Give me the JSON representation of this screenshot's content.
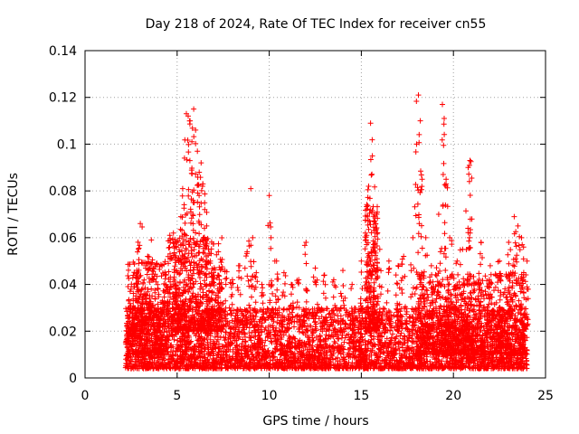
{
  "chart_data": {
    "type": "scatter",
    "title": "Day 218 of 2024, Rate Of TEC Index for receiver cn55",
    "xlabel": "GPS time / hours",
    "ylabel": "ROTI / TECUs",
    "xlim": [
      0,
      25
    ],
    "ylim": [
      0,
      0.14
    ],
    "xticks": [
      0,
      5,
      10,
      15,
      20,
      25
    ],
    "yticks": [
      0,
      0.02,
      0.04,
      0.06,
      0.08,
      0.1,
      0.12,
      0.14
    ],
    "xtick_labels": [
      "0",
      "5",
      "10",
      "15",
      "20",
      "25"
    ],
    "ytick_labels": [
      "0",
      "0.02",
      "0.04",
      "0.06",
      "0.08",
      "0.1",
      "0.12",
      "0.14"
    ],
    "grid": true,
    "marker": "+",
    "color": "#ff0000",
    "x_range_observed": [
      2.2,
      24.0
    ],
    "points": [
      [
        2.3,
        0.013
      ],
      [
        2.4,
        0.018
      ],
      [
        2.5,
        0.038
      ],
      [
        2.6,
        0.022
      ],
      [
        2.7,
        0.03
      ],
      [
        2.8,
        0.045
      ],
      [
        2.9,
        0.055
      ],
      [
        3.0,
        0.066
      ],
      [
        3.1,
        0.049
      ],
      [
        3.2,
        0.036
      ],
      [
        3.4,
        0.052
      ],
      [
        3.5,
        0.041
      ],
      [
        3.6,
        0.059
      ],
      [
        3.7,
        0.047
      ],
      [
        3.8,
        0.034
      ],
      [
        4.0,
        0.028
      ],
      [
        4.2,
        0.033
      ],
      [
        4.4,
        0.044
      ],
      [
        4.6,
        0.061
      ],
      [
        4.8,
        0.062
      ],
      [
        5.0,
        0.058
      ],
      [
        5.1,
        0.05
      ],
      [
        5.2,
        0.069
      ],
      [
        5.3,
        0.081
      ],
      [
        5.4,
        0.094
      ],
      [
        5.5,
        0.113
      ],
      [
        5.6,
        0.112
      ],
      [
        5.7,
        0.11
      ],
      [
        5.8,
        0.101
      ],
      [
        5.9,
        0.115
      ],
      [
        6.0,
        0.106
      ],
      [
        6.1,
        0.097
      ],
      [
        6.2,
        0.088
      ],
      [
        6.3,
        0.092
      ],
      [
        6.4,
        0.083
      ],
      [
        6.5,
        0.072
      ],
      [
        6.6,
        0.065
      ],
      [
        6.8,
        0.05
      ],
      [
        7.0,
        0.044
      ],
      [
        7.3,
        0.04
      ],
      [
        7.6,
        0.046
      ],
      [
        8.0,
        0.042
      ],
      [
        8.4,
        0.048
      ],
      [
        8.8,
        0.054
      ],
      [
        9.0,
        0.081
      ],
      [
        9.1,
        0.06
      ],
      [
        9.3,
        0.045
      ],
      [
        9.6,
        0.04
      ],
      [
        10.0,
        0.078
      ],
      [
        10.1,
        0.06
      ],
      [
        10.4,
        0.05
      ],
      [
        10.8,
        0.045
      ],
      [
        11.2,
        0.04
      ],
      [
        11.6,
        0.042
      ],
      [
        12.0,
        0.058
      ],
      [
        12.5,
        0.047
      ],
      [
        13.0,
        0.044
      ],
      [
        13.5,
        0.042
      ],
      [
        14.0,
        0.046
      ],
      [
        14.5,
        0.04
      ],
      [
        15.0,
        0.05
      ],
      [
        15.4,
        0.082
      ],
      [
        15.5,
        0.109
      ],
      [
        15.6,
        0.095
      ],
      [
        15.7,
        0.07
      ],
      [
        16.0,
        0.055
      ],
      [
        16.5,
        0.05
      ],
      [
        17.0,
        0.048
      ],
      [
        17.3,
        0.052
      ],
      [
        17.8,
        0.06
      ],
      [
        18.0,
        0.1
      ],
      [
        18.1,
        0.121
      ],
      [
        18.2,
        0.11
      ],
      [
        18.3,
        0.085
      ],
      [
        18.5,
        0.06
      ],
      [
        18.8,
        0.048
      ],
      [
        19.2,
        0.07
      ],
      [
        19.4,
        0.117
      ],
      [
        19.5,
        0.111
      ],
      [
        19.6,
        0.085
      ],
      [
        19.8,
        0.06
      ],
      [
        20.2,
        0.05
      ],
      [
        20.5,
        0.055
      ],
      [
        20.8,
        0.09
      ],
      [
        20.9,
        0.093
      ],
      [
        21.0,
        0.068
      ],
      [
        21.5,
        0.058
      ],
      [
        22.0,
        0.048
      ],
      [
        22.5,
        0.05
      ],
      [
        23.0,
        0.058
      ],
      [
        23.3,
        0.069
      ],
      [
        23.5,
        0.065
      ],
      [
        23.7,
        0.06
      ],
      [
        24.0,
        0.05
      ]
    ],
    "density_bands": [
      {
        "x0": 2.2,
        "x1": 24.0,
        "baseline_min": 0.004,
        "baseline_max": 0.03,
        "n": 4200
      },
      {
        "x0": 4.5,
        "x1": 7.5,
        "baseline_min": 0.02,
        "baseline_max": 0.06,
        "n": 500
      },
      {
        "x0": 15.2,
        "x1": 15.9,
        "baseline_min": 0.02,
        "baseline_max": 0.075,
        "n": 220
      },
      {
        "x0": 18.0,
        "x1": 24.0,
        "baseline_min": 0.01,
        "baseline_max": 0.045,
        "n": 900
      },
      {
        "x0": 2.3,
        "x1": 4.5,
        "baseline_min": 0.01,
        "baseline_max": 0.05,
        "n": 350
      }
    ]
  }
}
